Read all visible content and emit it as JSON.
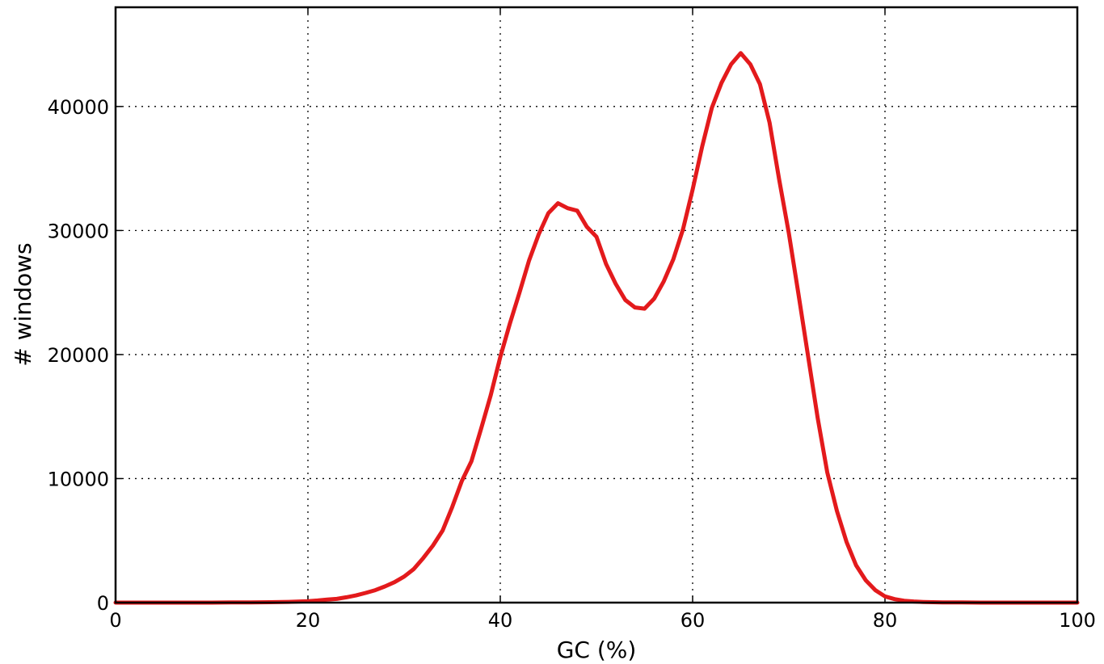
{
  "chart_data": {
    "type": "line",
    "title": "",
    "xlabel": "GC (%)",
    "ylabel": "# windows",
    "xlim": [
      0,
      100
    ],
    "ylim": [
      0,
      48000
    ],
    "xticks": [
      0,
      20,
      40,
      60,
      80,
      100
    ],
    "yticks": [
      0,
      10000,
      20000,
      30000,
      40000
    ],
    "xtick_labels": [
      "0",
      "20",
      "40",
      "60",
      "80",
      "100"
    ],
    "ytick_labels": [
      "0",
      "10000",
      "20000",
      "30000",
      "40000"
    ],
    "grid": true,
    "legend": "none",
    "series": [
      {
        "color": "#e31a1c",
        "x": [
          0,
          2,
          4,
          6,
          8,
          10,
          12,
          14,
          16,
          18,
          20,
          21,
          22,
          23,
          24,
          25,
          26,
          27,
          28,
          29,
          30,
          31,
          32,
          33,
          34,
          35,
          36,
          37,
          38,
          39,
          40,
          41,
          42,
          43,
          44,
          45,
          46,
          47,
          48,
          49,
          50,
          51,
          52,
          53,
          54,
          55,
          56,
          57,
          58,
          59,
          60,
          61,
          62,
          63,
          64,
          65,
          66,
          67,
          68,
          69,
          70,
          71,
          72,
          73,
          74,
          75,
          76,
          77,
          78,
          79,
          80,
          81,
          82,
          83,
          84,
          86,
          88,
          90,
          95,
          100
        ],
        "y": [
          0,
          0,
          0,
          0,
          0,
          0,
          10,
          20,
          30,
          60,
          120,
          170,
          240,
          300,
          430,
          580,
          780,
          1000,
          1300,
          1650,
          2100,
          2700,
          3600,
          4600,
          5800,
          7700,
          9800,
          11400,
          14000,
          16700,
          19800,
          22500,
          25000,
          27600,
          29700,
          31400,
          32200,
          31800,
          31600,
          30300,
          29500,
          27300,
          25700,
          24400,
          23800,
          23700,
          24500,
          25900,
          27700,
          30100,
          33300,
          36800,
          39900,
          41900,
          43400,
          44300,
          43400,
          41800,
          38700,
          34100,
          29800,
          24900,
          19900,
          14900,
          10500,
          7400,
          4900,
          3000,
          1800,
          1000,
          500,
          280,
          150,
          90,
          50,
          20,
          10,
          0,
          0,
          0
        ]
      }
    ]
  }
}
